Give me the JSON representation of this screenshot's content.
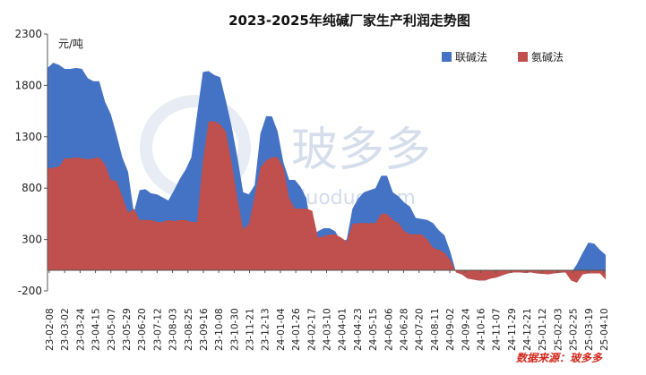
{
  "chart_data": {
    "type": "area",
    "title": "2023-2025年纯碱厂家生产利润走势图",
    "unit_label": "元/吨",
    "ylim": [
      -200,
      2300
    ],
    "yticks": [
      -200,
      300,
      800,
      1300,
      1800,
      2300
    ],
    "legend_placement": "top-right",
    "source_label": "数据来源：玻多多",
    "watermark": {
      "text": "玻多多",
      "url": "boduoduo.com"
    },
    "x_tick_labels": [
      "23-02-08",
      "23-03-02",
      "23-03-24",
      "23-04-15",
      "23-05-07",
      "23-05-29",
      "23-06-20",
      "23-07-12",
      "23-08-03",
      "23-08-25",
      "23-09-16",
      "23-10-08",
      "23-10-30",
      "23-11-21",
      "23-12-13",
      "24-01-04",
      "24-01-26",
      "24-02-17",
      "24-03-10",
      "24-04-01",
      "24-04-23",
      "24-05-15",
      "24-06-06",
      "24-06-28",
      "24-07-20",
      "24-08-11",
      "24-09-02",
      "24-09-24",
      "24-10-16",
      "24-11-07",
      "24-11-29",
      "24-12-21",
      "25-01-12",
      "25-02-03",
      "25-02-25",
      "25-03-19",
      "25-04-10"
    ],
    "series": [
      {
        "name": "联碱法",
        "color": "#4472c4",
        "values": [
          1970,
          2020,
          2000,
          1960,
          1960,
          1970,
          1960,
          1870,
          1840,
          1840,
          1640,
          1520,
          1320,
          1100,
          960,
          560,
          780,
          790,
          750,
          740,
          710,
          680,
          780,
          890,
          980,
          1100,
          1520,
          1930,
          1940,
          1900,
          1880,
          1650,
          1400,
          1100,
          760,
          740,
          830,
          1330,
          1500,
          1500,
          1350,
          1050,
          880,
          880,
          810,
          700,
          330,
          380,
          410,
          410,
          380,
          280,
          300,
          600,
          700,
          760,
          780,
          800,
          920,
          920,
          760,
          720,
          660,
          620,
          510,
          500,
          490,
          460,
          390,
          340,
          180,
          -20,
          -40,
          -80,
          -90,
          -100,
          -100,
          -80,
          -70,
          -50,
          -30,
          -20,
          -20,
          -25,
          -20,
          -30,
          -35,
          -20,
          -25,
          -20,
          -20,
          -25,
          60,
          170,
          270,
          260,
          200,
          150
        ]
      },
      {
        "name": "氨碱法",
        "color": "#c0504d",
        "values": [
          990,
          1000,
          1010,
          1090,
          1090,
          1100,
          1090,
          1080,
          1090,
          1100,
          1030,
          880,
          870,
          720,
          560,
          600,
          490,
          490,
          490,
          470,
          470,
          490,
          480,
          490,
          490,
          470,
          470,
          1060,
          1450,
          1450,
          1420,
          1350,
          1050,
          700,
          400,
          450,
          720,
          1000,
          1070,
          1100,
          1100,
          1000,
          700,
          600,
          600,
          600,
          580,
          320,
          330,
          350,
          350,
          320,
          280,
          450,
          460,
          460,
          460,
          460,
          550,
          550,
          490,
          460,
          380,
          350,
          350,
          350,
          300,
          220,
          200,
          170,
          100,
          -20,
          -40,
          -80,
          -90,
          -100,
          -100,
          -80,
          -70,
          -50,
          -30,
          -20,
          -20,
          -25,
          -20,
          -30,
          -35,
          -40,
          -30,
          -25,
          -20,
          -100,
          -120,
          -40,
          -30,
          -30,
          -30,
          -90
        ]
      }
    ]
  }
}
